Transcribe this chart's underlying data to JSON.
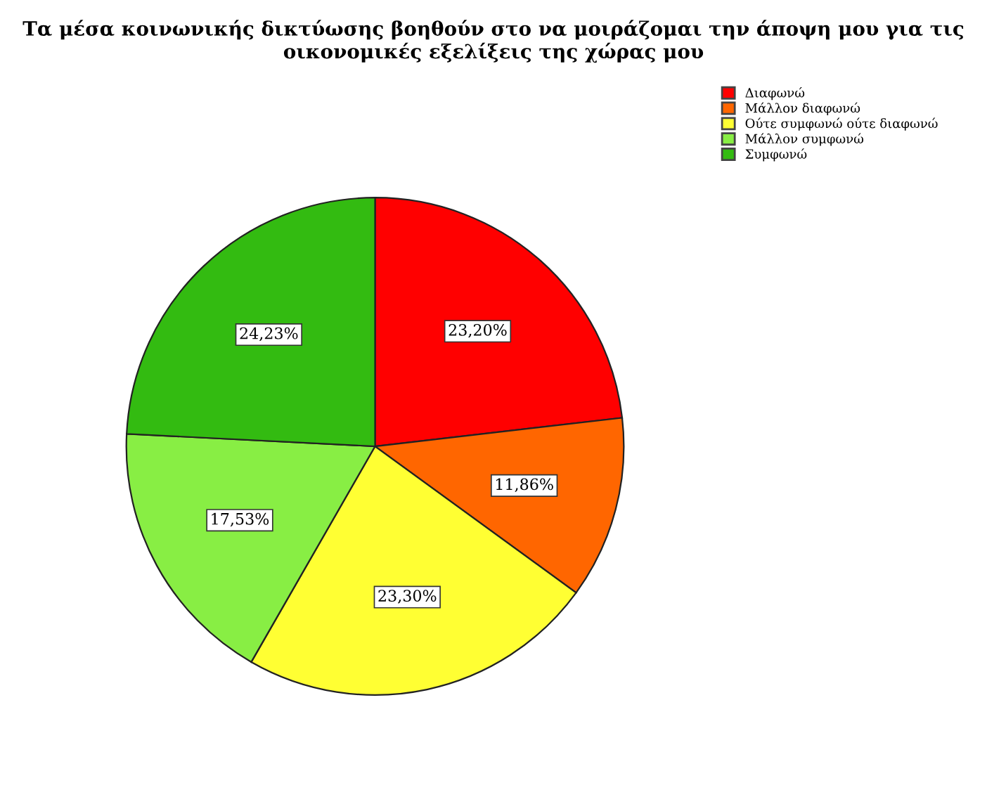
{
  "chart_data": {
    "type": "pie",
    "title": "Τα μέσα κοινωνικής δικτύωσης βοηθούν στο να μοιράζομαι την άποψη μου για τις οικονομικές εξελίξεις της χώρας μου",
    "categories": [
      "Διαφωνώ",
      "Μάλλον διαφωνώ",
      "Ούτε συμφωνώ ούτε διαφωνώ",
      "Μάλλον συμφωνώ",
      "Συμφωνώ"
    ],
    "values": [
      23.2,
      11.86,
      23.3,
      17.53,
      24.23
    ],
    "value_labels": [
      "23,20%",
      "11,86%",
      "23,30%",
      "17,53%",
      "24,23%"
    ],
    "colors": [
      "#ff0000",
      "#ff6600",
      "#ffff33",
      "#88ee44",
      "#33bb11"
    ],
    "legend": "top right"
  }
}
